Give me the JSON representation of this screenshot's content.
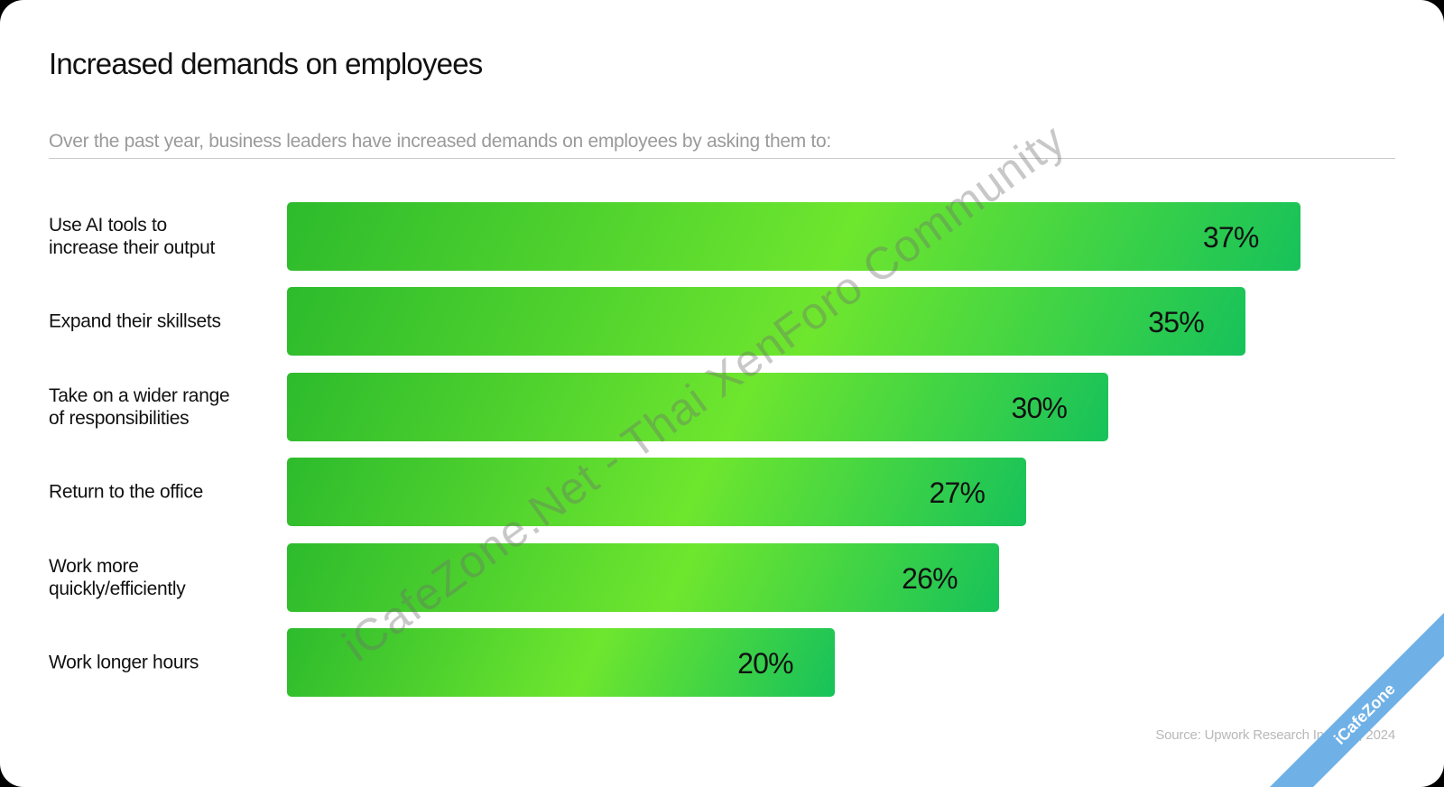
{
  "header": {
    "title": "Increased demands on employees",
    "subtitle": "Over the past year, business leaders have increased demands on employees by asking them to:"
  },
  "chart_data": {
    "type": "bar",
    "orientation": "horizontal",
    "title": "Increased demands on employees",
    "categories": [
      "Use AI tools to\nincrease their output",
      "Expand their skillsets",
      "Take on a wider range\nof responsibilities",
      "Return to the office",
      "Work more\nquickly/efficiently",
      "Work longer hours"
    ],
    "values": [
      37,
      35,
      30,
      27,
      26,
      20
    ],
    "value_labels": [
      "37%",
      "35%",
      "30%",
      "27%",
      "26%",
      "20%"
    ],
    "xlim": [
      0,
      50
    ],
    "grid": false,
    "legend": "none",
    "bar_color_start": "#2dbb2d",
    "bar_color_mid": "#6ee62e",
    "bar_color_end": "#17c25a"
  },
  "footer": {
    "source": "Source: Upwork Research Institute, 2024"
  },
  "watermark": {
    "text": "iCafeZone.Net - Thai XenForo Community",
    "corner_text": "iCafeZone"
  }
}
